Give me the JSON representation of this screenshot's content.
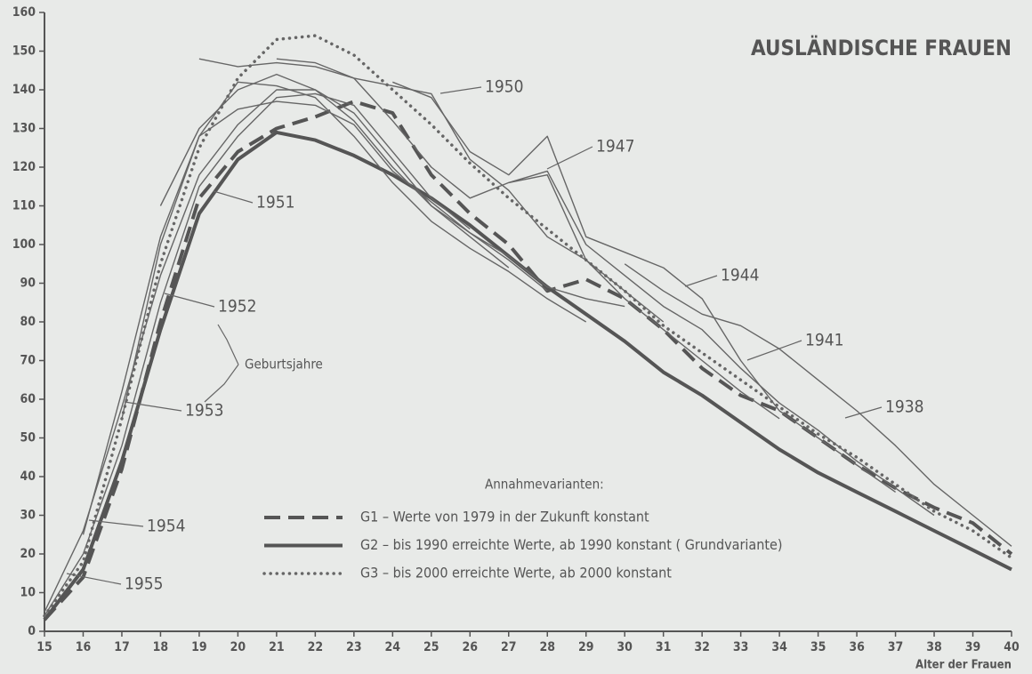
{
  "chart_data": {
    "type": "line",
    "title": "AUSLÄNDISCHE FRAUEN",
    "xlabel": "Alter der Frauen",
    "legend_title": "Annahmevarianten:",
    "annotation": "Geburtsjahre",
    "x": [
      15,
      16,
      17,
      18,
      19,
      20,
      21,
      22,
      23,
      24,
      25,
      26,
      27,
      28,
      29,
      30,
      31,
      32,
      33,
      34,
      35,
      36,
      37,
      38,
      39,
      40
    ],
    "xlim": [
      15,
      40
    ],
    "xticks": [
      15,
      16,
      17,
      18,
      19,
      20,
      21,
      22,
      23,
      24,
      25,
      26,
      27,
      28,
      29,
      30,
      31,
      32,
      33,
      34,
      35,
      36,
      37,
      38,
      39,
      40
    ],
    "ylim": [
      0,
      160
    ],
    "yticks": [
      0,
      10,
      20,
      30,
      40,
      50,
      60,
      70,
      80,
      90,
      100,
      110,
      120,
      130,
      140,
      150,
      160
    ],
    "series": [
      {
        "name": "G1 – Werte von 1979 in der Zukunft konstant",
        "color": "#555",
        "style": "dashed",
        "values": [
          3,
          14,
          42,
          80,
          112,
          124,
          130,
          133,
          137,
          134,
          118,
          108,
          100,
          88,
          91,
          86,
          78,
          68,
          61,
          57,
          50,
          43,
          37,
          32,
          28,
          20
        ]
      },
      {
        "name": "G2 – bis 1990 erreichte Werte, ab 1990 konstant ( Grundvariante)",
        "color": "#555",
        "style": "thick",
        "values": [
          3,
          16,
          44,
          78,
          108,
          122,
          129,
          127,
          123,
          118,
          112,
          105,
          97,
          89,
          82,
          75,
          67,
          61,
          54,
          47,
          41,
          36,
          31,
          26,
          21,
          16
        ]
      },
      {
        "name": "G3 – bis 2000 erreichte Werte, ab 2000 konstant",
        "color": "#666",
        "style": "dotted",
        "values": [
          4,
          18,
          55,
          95,
          125,
          143,
          153,
          154,
          149,
          140,
          131,
          121,
          112,
          104,
          96,
          88,
          79,
          72,
          65,
          58,
          51,
          45,
          38,
          31,
          26,
          19
        ]
      },
      {
        "name": "1938",
        "color": "#666",
        "style": "thin",
        "values": [
          null,
          null,
          null,
          null,
          null,
          null,
          null,
          null,
          null,
          null,
          null,
          null,
          null,
          null,
          null,
          95,
          88,
          82,
          79,
          73,
          65,
          57,
          48,
          38,
          30,
          22
        ]
      },
      {
        "name": "1941",
        "color": "#666",
        "style": "thin",
        "values": [
          null,
          null,
          null,
          null,
          null,
          null,
          null,
          null,
          null,
          null,
          null,
          null,
          116,
          119,
          100,
          92,
          84,
          78,
          68,
          59,
          52,
          44,
          37,
          30,
          null,
          null
        ]
      },
      {
        "name": "1944",
        "color": "#666",
        "style": "thin",
        "values": [
          null,
          null,
          null,
          null,
          null,
          null,
          null,
          null,
          null,
          142,
          138,
          124,
          118,
          128,
          102,
          98,
          94,
          86,
          70,
          57,
          50,
          43,
          36,
          null,
          null,
          null
        ]
      },
      {
        "name": "1947",
        "color": "#666",
        "style": "thin",
        "values": [
          null,
          null,
          null,
          null,
          null,
          null,
          148,
          147,
          143,
          132,
          120,
          112,
          116,
          118,
          96,
          86,
          78,
          70,
          62,
          55,
          null,
          null,
          null,
          null,
          null,
          null
        ]
      },
      {
        "name": "1950",
        "color": "#666",
        "style": "thin",
        "values": [
          null,
          null,
          null,
          null,
          148,
          146,
          147,
          146,
          143,
          141,
          139,
          122,
          114,
          102,
          96,
          88,
          80,
          null,
          null,
          null,
          null,
          null,
          null,
          null,
          null,
          null
        ]
      },
      {
        "name": "1951",
        "color": "#666",
        "style": "thin",
        "values": [
          null,
          null,
          null,
          110,
          130,
          140,
          144,
          140,
          134,
          122,
          110,
          103,
          97,
          89,
          86,
          84,
          null,
          null,
          null,
          null,
          null,
          null,
          null,
          null,
          null,
          null
        ]
      },
      {
        "name": "1952",
        "color": "#666",
        "style": "thin",
        "values": [
          null,
          null,
          55,
          100,
          128,
          142,
          141,
          138,
          128,
          116,
          106,
          99,
          93,
          86,
          80,
          null,
          null,
          null,
          null,
          null,
          null,
          null,
          null,
          null,
          null,
          null
        ]
      },
      {
        "name": "1953",
        "color": "#666",
        "style": "thin",
        "values": [
          null,
          25,
          62,
          102,
          128,
          135,
          137,
          136,
          131,
          119,
          111,
          103,
          96,
          88,
          null,
          null,
          null,
          null,
          null,
          null,
          null,
          null,
          null,
          null,
          null,
          null
        ]
      },
      {
        "name": "1954",
        "color": "#666",
        "style": "thin",
        "values": [
          5,
          26,
          58,
          92,
          118,
          131,
          140,
          140,
          132,
          120,
          110,
          102,
          94,
          null,
          null,
          null,
          null,
          null,
          null,
          null,
          null,
          null,
          null,
          null,
          null,
          null
        ]
      },
      {
        "name": "1955",
        "color": "#666",
        "style": "thin",
        "values": [
          4,
          20,
          48,
          85,
          115,
          128,
          138,
          139,
          136,
          124,
          112,
          104,
          null,
          null,
          null,
          null,
          null,
          null,
          null,
          null,
          null,
          null,
          null,
          null,
          null,
          null
        ]
      }
    ]
  }
}
